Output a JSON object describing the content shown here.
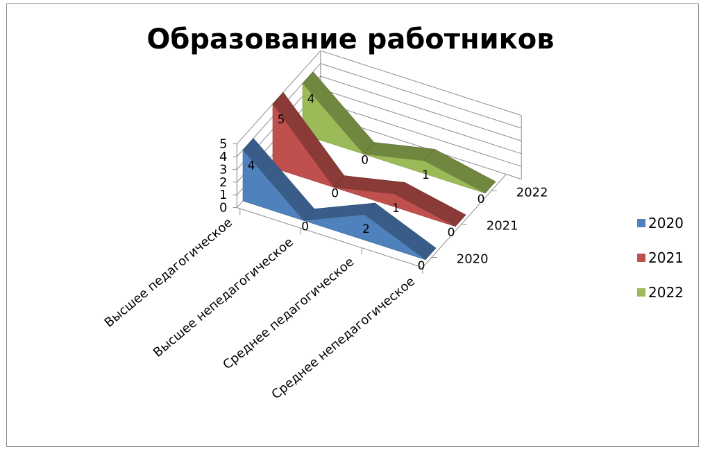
{
  "chart_data": {
    "type": "area",
    "title": "Образование работников",
    "categories": [
      "Высшее педагогическое",
      "Высшее непедагогическое",
      "Среднее педагогическое",
      "Среднее непедагогическое"
    ],
    "series": [
      {
        "name": "2020",
        "values": [
          4,
          0,
          2,
          0
        ],
        "color": "#4F81BD"
      },
      {
        "name": "2021",
        "values": [
          5,
          0,
          1,
          0
        ],
        "color": "#C0504D"
      },
      {
        "name": "2022",
        "values": [
          4,
          0,
          1,
          0
        ],
        "color": "#9BBB59"
      }
    ],
    "yticks": [
      "0",
      "1",
      "2",
      "3",
      "4",
      "5"
    ],
    "ylim": [
      0,
      5
    ],
    "depth_labels": [
      "2020",
      "2021",
      "2022"
    ],
    "legend": "right",
    "grid": true
  }
}
